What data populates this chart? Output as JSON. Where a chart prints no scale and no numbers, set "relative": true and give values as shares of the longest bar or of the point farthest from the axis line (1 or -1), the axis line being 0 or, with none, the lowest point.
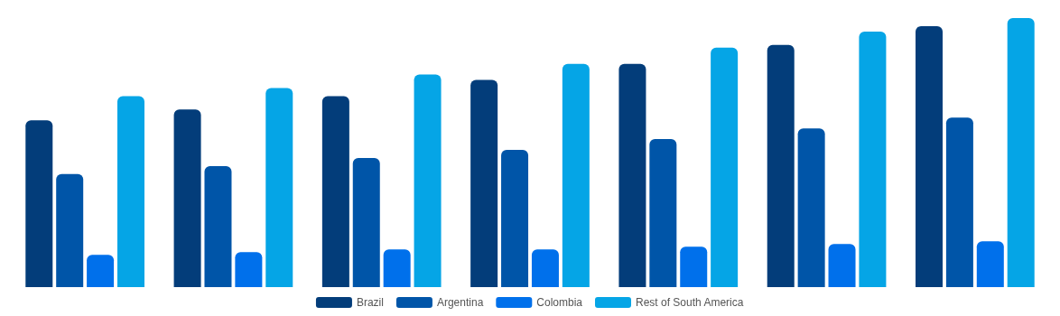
{
  "chart_data": {
    "type": "bar",
    "relative": true,
    "legend": "bottom",
    "categories": [
      null,
      null,
      null,
      null,
      null,
      null,
      null
    ],
    "series": [
      {
        "name": "Brazil",
        "color": "#033d7a",
        "values": [
          0.62,
          0.66,
          0.71,
          0.77,
          0.83,
          0.9,
          0.97
        ]
      },
      {
        "name": "Argentina",
        "color": "#0055a8",
        "values": [
          0.42,
          0.45,
          0.48,
          0.51,
          0.55,
          0.59,
          0.63
        ]
      },
      {
        "name": "Colombia",
        "color": "#0070eb",
        "values": [
          0.12,
          0.13,
          0.14,
          0.14,
          0.15,
          0.16,
          0.17
        ]
      },
      {
        "name": "Rest of South America",
        "color": "#05a5e6",
        "values": [
          0.71,
          0.74,
          0.79,
          0.83,
          0.89,
          0.95,
          1
        ]
      }
    ]
  }
}
